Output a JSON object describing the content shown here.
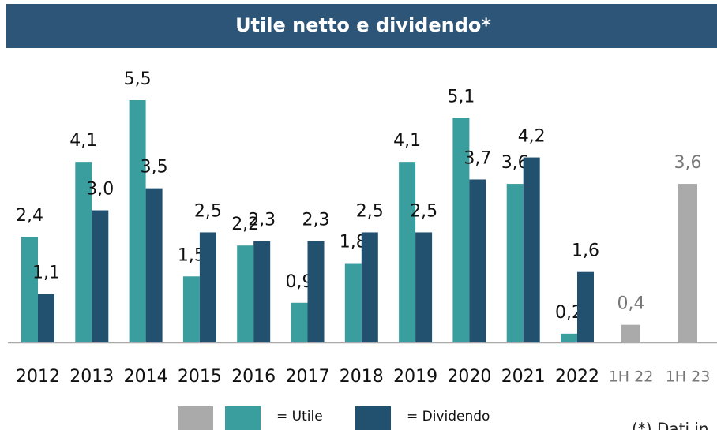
{
  "chart_data": {
    "type": "bar",
    "title": "Utile netto e dividendo*",
    "categories": [
      "2012",
      "2013",
      "2014",
      "2015",
      "2016",
      "2017",
      "2018",
      "2019",
      "2020",
      "2021",
      "2022",
      "1H 22",
      "1H 23"
    ],
    "series": [
      {
        "name": "= Utile",
        "color": "#3a9e9e",
        "colors": [
          "#3a9e9e",
          "#3a9e9e",
          "#3a9e9e",
          "#3a9e9e",
          "#3a9e9e",
          "#3a9e9e",
          "#3a9e9e",
          "#3a9e9e",
          "#3a9e9e",
          "#3a9e9e",
          "#3a9e9e",
          "#aaaaaa",
          "#aaaaaa"
        ],
        "values": [
          2.4,
          4.1,
          5.5,
          1.5,
          2.2,
          0.9,
          1.8,
          4.1,
          5.1,
          3.6,
          0.2,
          0.4,
          3.6
        ],
        "value_labels": [
          "2,4",
          "4,1",
          "5,5",
          "1,5",
          "2,2",
          "0,9",
          "1,8",
          "4,1",
          "5,1",
          "3,6",
          "0,2",
          "0,4",
          "3,6"
        ]
      },
      {
        "name": "= Dividendo",
        "color": "#22506f",
        "values": [
          1.1,
          3.0,
          3.5,
          2.5,
          2.3,
          2.3,
          2.5,
          2.5,
          3.7,
          4.2,
          1.6,
          null,
          null
        ],
        "value_labels": [
          "1,1",
          "3,0",
          "3,5",
          "2,5",
          "2,3",
          "2,3",
          "2,5",
          "2,5",
          "3,7",
          "4,2",
          "1,6",
          null,
          null
        ]
      }
    ],
    "legend_swatch_color": "#aaaaaa",
    "ylim": [
      0,
      5.5
    ],
    "footnote": "(*) Dati in"
  }
}
